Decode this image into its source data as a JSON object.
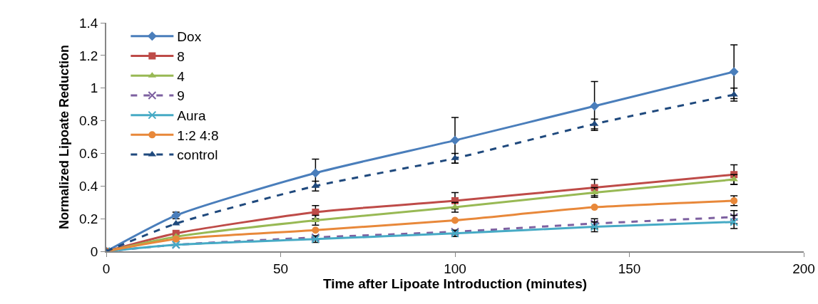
{
  "chart_data": {
    "type": "line",
    "xlabel": "Time after Lipoate Introduction (minutes)",
    "ylabel": "Normalized Lipoate Reduction",
    "x": [
      0,
      20,
      60,
      100,
      140,
      180
    ],
    "xlim": [
      0,
      200
    ],
    "xticks": [
      0,
      50,
      100,
      150,
      200
    ],
    "ylim": [
      0,
      1.4
    ],
    "yticks": [
      0,
      0.2,
      0.4,
      0.6,
      0.8,
      1,
      1.2,
      1.4
    ],
    "grid": false,
    "legend": "top left",
    "line_style": "solid",
    "series": [
      {
        "name": "Dox",
        "color": "#4a7ebb",
        "marker": "diamond",
        "values": [
          0,
          0.22,
          0.48,
          0.68,
          0.89,
          1.1
        ],
        "errors": [
          null,
          0.02,
          0.085,
          0.14,
          0.15,
          0.165
        ]
      },
      {
        "name": "8",
        "color": "#be4b48",
        "marker": "square",
        "values": [
          0,
          0.11,
          0.24,
          0.31,
          0.39,
          0.47
        ],
        "errors": [
          null,
          null,
          0.04,
          0.05,
          0.05,
          0.06
        ]
      },
      {
        "name": "4",
        "color": "#98b954",
        "marker": "triangle",
        "values": [
          0,
          0.09,
          0.19,
          0.27,
          0.36,
          0.44
        ],
        "errors": [
          null,
          null,
          0.03,
          0.03,
          0.03,
          0.03
        ]
      },
      {
        "name": "9",
        "color": "#7d60a0",
        "marker": "cross",
        "line_style": "dashed",
        "values": [
          0,
          0.04,
          0.085,
          0.12,
          0.17,
          0.21
        ],
        "errors": [
          null,
          null,
          null,
          null,
          0.03,
          0.04
        ]
      },
      {
        "name": "Aura",
        "color": "#46aac5",
        "marker": "cross",
        "values": [
          0,
          0.04,
          0.075,
          0.11,
          0.15,
          0.18
        ],
        "errors": [
          null,
          null,
          0.02,
          0.02,
          0.03,
          0.04
        ]
      },
      {
        "name": "1:2 4:8",
        "color": "#e8883a",
        "marker": "circle",
        "values": [
          0,
          0.075,
          0.13,
          0.19,
          0.27,
          0.31
        ],
        "errors": [
          null,
          null,
          null,
          null,
          null,
          0.03
        ]
      },
      {
        "name": "control",
        "color": "#1f497d",
        "marker": "triangle",
        "line_style": "dashed",
        "values": [
          0,
          0.17,
          0.4,
          0.57,
          0.78,
          0.96
        ],
        "errors": [
          null,
          null,
          0.03,
          0.03,
          0.03,
          0.04
        ]
      }
    ]
  }
}
